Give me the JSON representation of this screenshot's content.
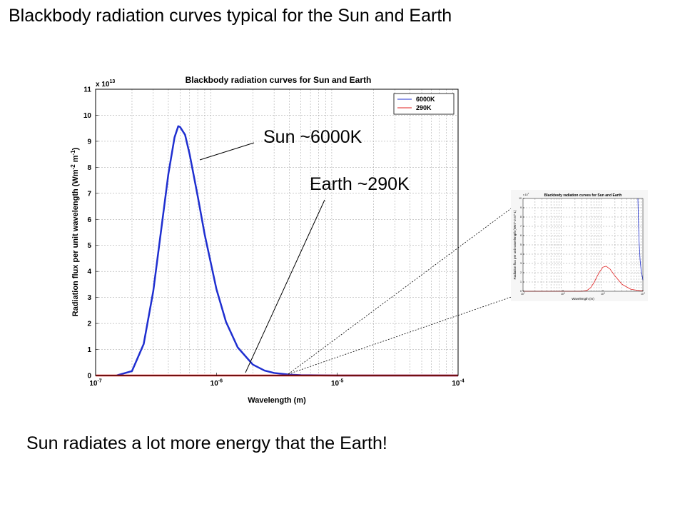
{
  "slide": {
    "title": "Blackbody radiation curves typical for the Sun and Earth",
    "caption": "Sun radiates a lot more energy that the Earth!"
  },
  "annotations": {
    "sun": "Sun ~6000K",
    "earth": "Earth ~290K"
  },
  "chart_data": [
    {
      "type": "line",
      "title": "Blackbody radiation curves for Sun and Earth",
      "xlabel": "Wavelength (m)",
      "ylabel": "Radiation flux per unit wavelength (Wm^-2 m^-1)",
      "x_scale": "log",
      "xlim": [
        1e-07,
        0.0001
      ],
      "ylim": [
        0,
        110000000000000.0
      ],
      "y_multiplier": "x 10^13",
      "x_tick_exponents": [
        -7,
        -6,
        -5,
        -4
      ],
      "y_ticks": [
        0,
        1,
        2,
        3,
        4,
        5,
        6,
        7,
        8,
        9,
        10,
        11
      ],
      "grid": true,
      "legend_position": "top-right",
      "series": [
        {
          "name": "6000K",
          "color": "#1f2fd0",
          "x": [
            1.5e-07,
            2e-07,
            2.5e-07,
            3e-07,
            3.5e-07,
            4e-07,
            4.5e-07,
            4.83e-07,
            5e-07,
            5.5e-07,
            6e-07,
            7e-07,
            8e-07,
            1e-06,
            1.2e-06,
            1.5e-06,
            2e-06,
            2.5e-06,
            3e-06,
            4e-06,
            5e-06,
            1e-05,
            0.0001
          ],
          "values": [
            0.005,
            0.17,
            1.21,
            3.24,
            5.65,
            7.74,
            9.15,
            9.58,
            9.55,
            9.25,
            8.5,
            6.89,
            5.41,
            3.32,
            2.06,
            1.08,
            0.42,
            0.19,
            0.098,
            0.034,
            0.015,
            0.0011,
            0.0
          ]
        },
        {
          "name": "290K",
          "color": "#e02020",
          "x": [
            1e-07,
            1e-06,
            1e-05,
            0.0001
          ],
          "values": [
            0,
            0,
            2e-07,
            1e-07
          ]
        }
      ]
    },
    {
      "type": "line",
      "title": "Blackbody radiation curves for Sun and Earth",
      "xlabel": "Wavelength (m)",
      "ylabel": "Radiation flux per unit wavelength (Wm^-2 m^-1)",
      "x_scale": "log",
      "xlim": [
        1e-07,
        0.0001
      ],
      "ylim": [
        0,
        100000000.0
      ],
      "y_multiplier": "x 10^7",
      "x_tick_exponents": [
        -7,
        -6,
        -5,
        -4
      ],
      "y_ticks": [
        0,
        1,
        2,
        3,
        4,
        5,
        6,
        7,
        8,
        9,
        10
      ],
      "grid": true,
      "series": [
        {
          "name": "6000K",
          "color": "#1f2fd0",
          "x": [
            7.5e-05,
            7.8e-05,
            8e-05,
            8.5e-05,
            9e-05,
            0.0001
          ],
          "values": [
            10,
            7.0,
            5.5,
            3.4,
            2.3,
            1.2
          ]
        },
        {
          "name": "290K",
          "color": "#e02020",
          "x": [
            1e-07,
            2e-06,
            3e-06,
            4e-06,
            5e-06,
            6e-06,
            7e-06,
            8e-06,
            1e-05,
            1.2e-05,
            1.5e-05,
            2e-05,
            3e-05,
            5e-05,
            0.0001
          ],
          "values": [
            0,
            0,
            0.003,
            0.09,
            0.42,
            0.95,
            1.53,
            2.0,
            2.6,
            2.7,
            2.4,
            1.65,
            0.75,
            0.21,
            0.024
          ]
        }
      ]
    }
  ]
}
